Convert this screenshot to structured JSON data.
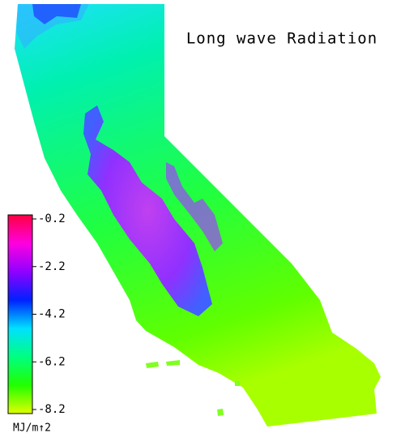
{
  "title": "Long wave Radiation",
  "colorbar": {
    "range": [
      -8.2,
      -0.2
    ],
    "ticks": [
      -0.2,
      -2.2,
      -4.2,
      -6.2,
      -8.2
    ],
    "unit": "MJ/m↑2",
    "colors": [
      "#ff0040",
      "#ff00e0",
      "#9000ff",
      "#0020ff",
      "#00e0ff",
      "#00ff80",
      "#20ff00",
      "#e0ff00"
    ]
  }
}
